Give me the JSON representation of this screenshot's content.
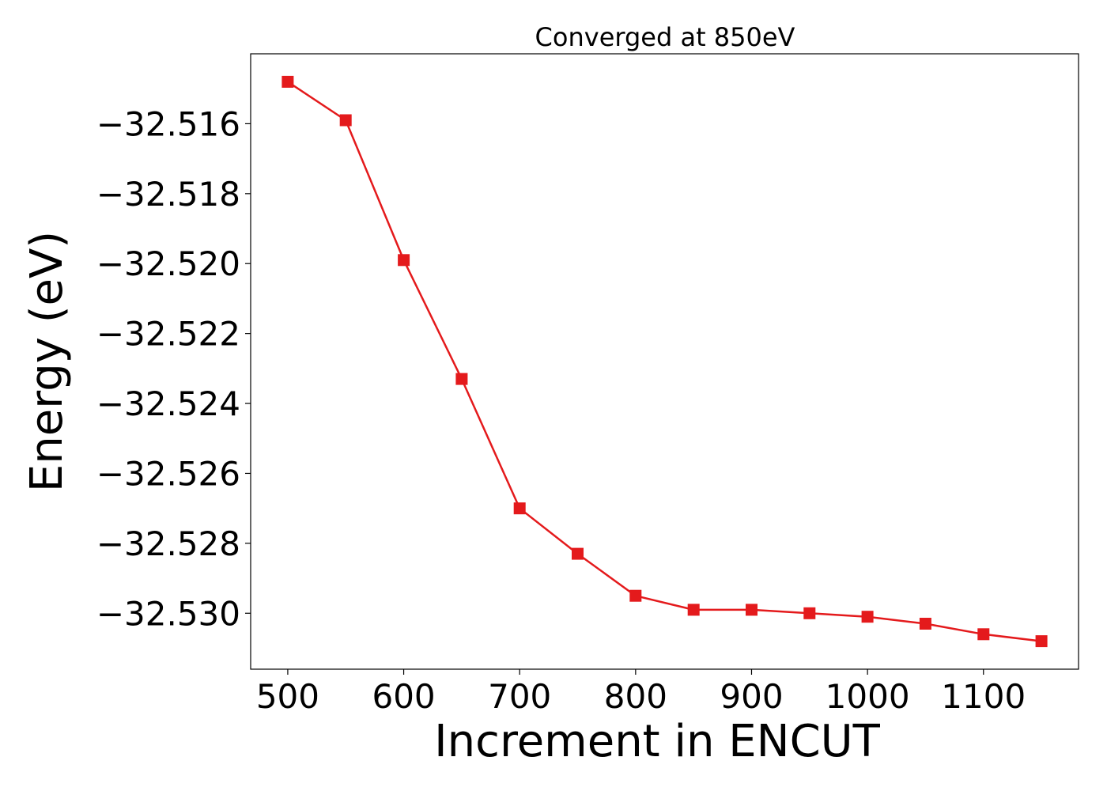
{
  "chart_data": {
    "type": "line",
    "title": "Converged at 850eV",
    "xlabel": "Increment in ENCUT",
    "ylabel": "Energy (eV)",
    "x": [
      500,
      550,
      600,
      650,
      700,
      750,
      800,
      850,
      900,
      950,
      1000,
      1050,
      1100,
      1150
    ],
    "series": [
      {
        "values": [
          -32.5148,
          -32.5159,
          -32.5199,
          -32.5233,
          -32.527,
          -32.5283,
          -32.5295,
          -32.5299,
          -32.5299,
          -32.53,
          -32.5301,
          -32.5303,
          -32.5306,
          -32.5308
        ],
        "color": "#e41a1c",
        "marker": "square"
      }
    ],
    "xlim": [
      468,
      1182
    ],
    "ylim": [
      -32.5316,
      -32.514
    ],
    "xticks": [
      500,
      600,
      700,
      800,
      900,
      1000,
      1100
    ],
    "xtick_labels": [
      "500",
      "600",
      "700",
      "800",
      "900",
      "1000",
      "1100"
    ],
    "yticks": [
      -32.516,
      -32.518,
      -32.52,
      -32.522,
      -32.524,
      -32.526,
      -32.528,
      -32.53
    ],
    "ytick_labels": [
      "−32.516",
      "−32.518",
      "−32.520",
      "−32.522",
      "−32.524",
      "−32.526",
      "−32.528",
      "−32.530"
    ],
    "grid": false,
    "legend": "none"
  }
}
